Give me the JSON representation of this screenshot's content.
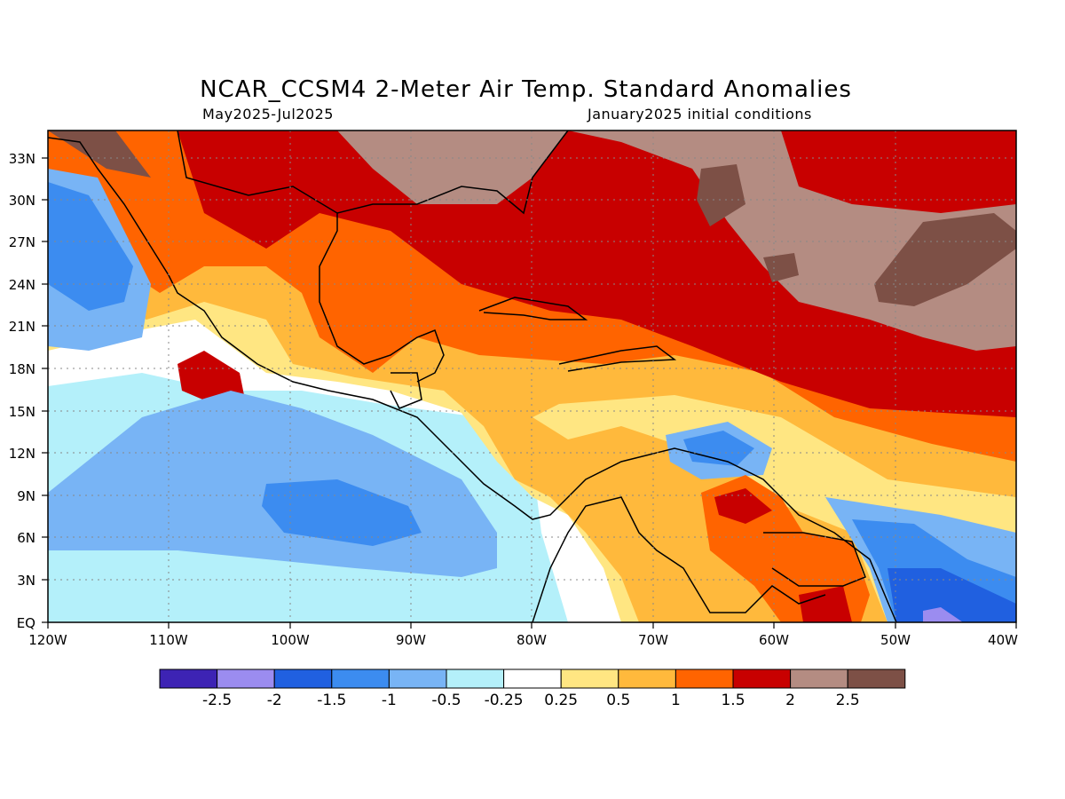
{
  "title": "NCAR_CCSM4 2-Meter Air Temp. Standard Anomalies",
  "subtitle_left": "May2025-Jul2025",
  "subtitle_right": "January2025 initial conditions",
  "lat_labels": [
    "33N",
    "30N",
    "27N",
    "24N",
    "21N",
    "18N",
    "15N",
    "12N",
    "9N",
    "6N",
    "3N",
    "EQ"
  ],
  "lon_labels": [
    "120W",
    "110W",
    "100W",
    "90W",
    "80W",
    "70W",
    "60W",
    "50W",
    "40W"
  ],
  "colorbar": {
    "colors": [
      "#3d23b4",
      "#9b8cf0",
      "#2060e0",
      "#3c8cf0",
      "#78b4f5",
      "#b4f0fa",
      "#ffffff",
      "#ffe682",
      "#ffb93c",
      "#ff6400",
      "#c80000",
      "#b48c82",
      "#7d5046"
    ],
    "labels": [
      "-2.5",
      "-2",
      "-1.5",
      "-1",
      "-0.5",
      "-0.25",
      "0.25",
      "0.5",
      "1",
      "1.5",
      "2",
      "2.5"
    ]
  }
}
